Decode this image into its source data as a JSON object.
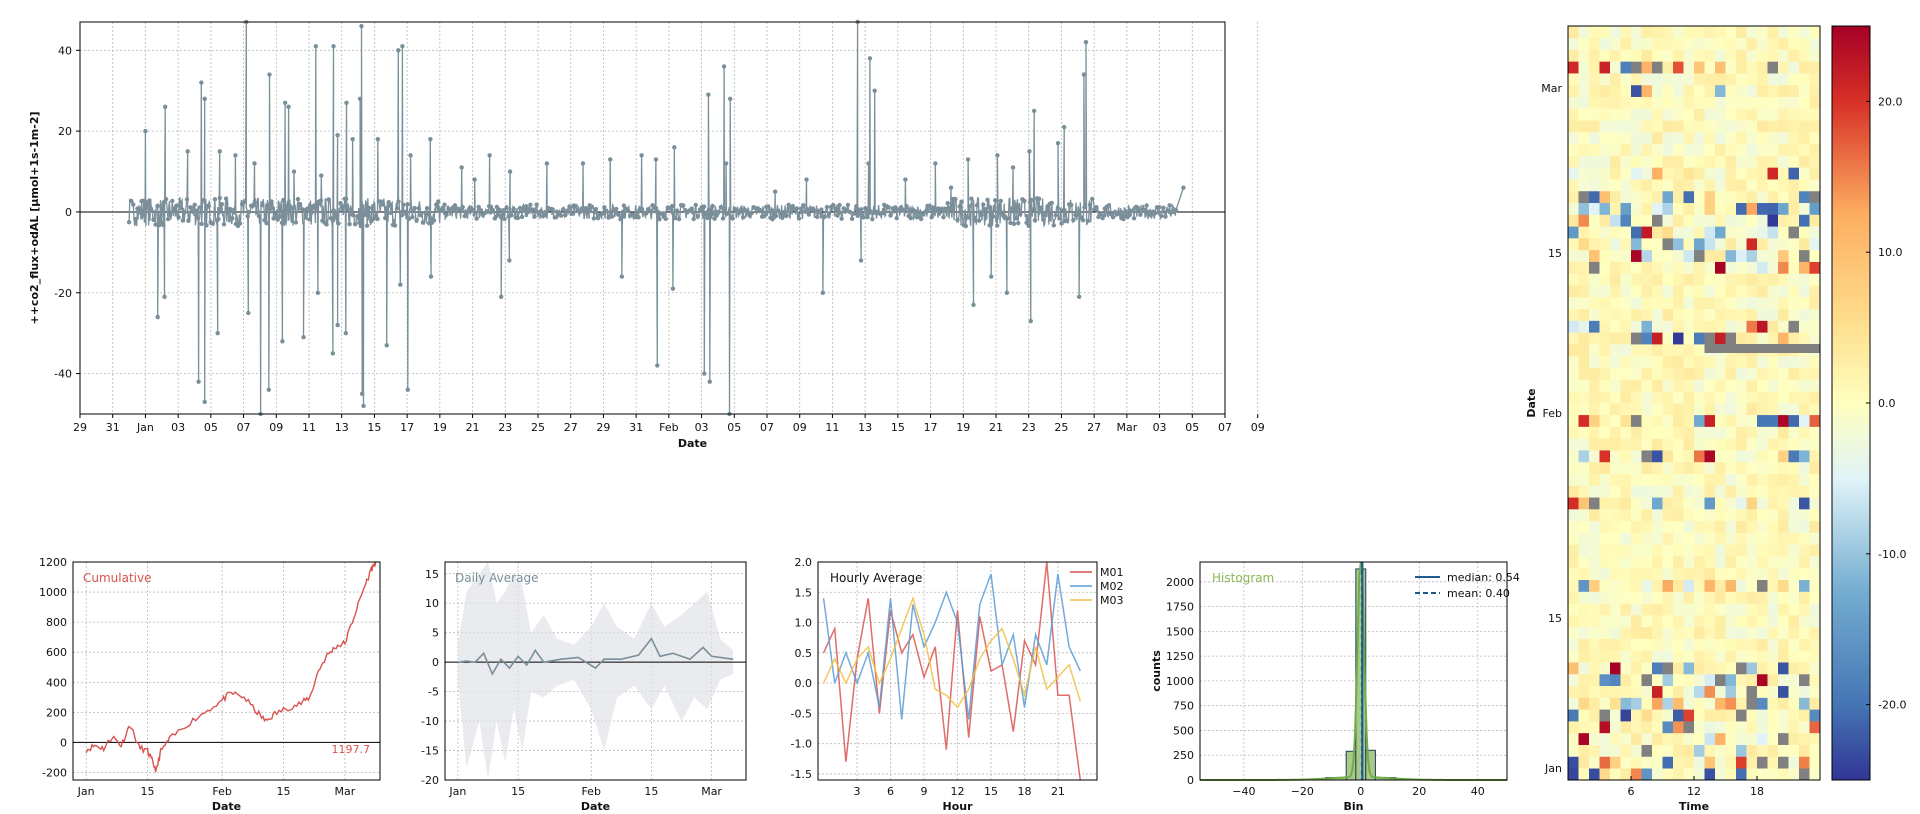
{
  "chart_data": [
    {
      "type": "line",
      "title": "",
      "xlabel": "Date",
      "ylabel": "++co2_flux+odAL [µmol+1s-1m-2]",
      "ylim": [
        -50,
        47
      ],
      "yticks": [
        -40,
        -20,
        0,
        20,
        40
      ],
      "xtick_labels": [
        "29",
        "31",
        "Jan",
        "03",
        "05",
        "07",
        "09",
        "11",
        "13",
        "15",
        "17",
        "19",
        "21",
        "23",
        "25",
        "27",
        "29",
        "31",
        "Feb",
        "03",
        "05",
        "07",
        "09",
        "11",
        "13",
        "15",
        "17",
        "19",
        "21",
        "23",
        "25",
        "27",
        "Mar",
        "03",
        "05",
        "07",
        "09"
      ],
      "x_range": [
        "2018-12-29",
        "2019-03-09"
      ],
      "data_range": [
        "2019-01-01",
        "2019-03-06"
      ],
      "series": [
        {
          "color": "#7a8f9a",
          "spikes": [
            [
              "2019-01-02",
              20
            ],
            [
              "2019-01-02",
              -26
            ],
            [
              "2019-01-03",
              26
            ],
            [
              "2019-01-03",
              -21
            ],
            [
              "2019-01-04",
              15
            ],
            [
              "2019-01-05",
              32
            ],
            [
              "2019-01-05",
              -42
            ],
            [
              "2019-01-05",
              28
            ],
            [
              "2019-01-05",
              -47
            ],
            [
              "2019-01-06",
              -30
            ],
            [
              "2019-01-06",
              15
            ],
            [
              "2019-01-07",
              14
            ],
            [
              "2019-01-08",
              12
            ],
            [
              "2019-01-08",
              47
            ],
            [
              "2019-01-08",
              -25
            ],
            [
              "2019-01-09",
              34
            ],
            [
              "2019-01-09",
              -44
            ],
            [
              "2019-01-09",
              -50
            ],
            [
              "2019-01-10",
              27
            ],
            [
              "2019-01-10",
              -32
            ],
            [
              "2019-01-10",
              26
            ],
            [
              "2019-01-11",
              -31
            ],
            [
              "2019-01-11",
              10
            ],
            [
              "2019-01-12",
              41
            ],
            [
              "2019-01-12",
              9
            ],
            [
              "2019-01-12",
              -20
            ],
            [
              "2019-01-13",
              41
            ],
            [
              "2019-01-13",
              -35
            ],
            [
              "2019-01-13",
              19
            ],
            [
              "2019-01-13",
              -28
            ],
            [
              "2019-01-14",
              27
            ],
            [
              "2019-01-14",
              -30
            ],
            [
              "2019-01-14",
              18
            ],
            [
              "2019-01-15",
              -45
            ],
            [
              "2019-01-15",
              28
            ],
            [
              "2019-01-15",
              46
            ],
            [
              "2019-01-15",
              -48
            ],
            [
              "2019-01-16",
              18
            ],
            [
              "2019-01-16",
              -33
            ],
            [
              "2019-01-17",
              40
            ],
            [
              "2019-01-17",
              -18
            ],
            [
              "2019-01-17",
              41
            ],
            [
              "2019-01-18",
              -44
            ],
            [
              "2019-01-18",
              14
            ],
            [
              "2019-01-19",
              -16
            ],
            [
              "2019-01-19",
              18
            ],
            [
              "2019-01-21",
              11
            ],
            [
              "2019-01-22",
              8
            ],
            [
              "2019-01-23",
              -21
            ],
            [
              "2019-01-23",
              14
            ],
            [
              "2019-01-24",
              10
            ],
            [
              "2019-01-24",
              -12
            ],
            [
              "2019-01-26",
              12
            ],
            [
              "2019-01-28",
              12
            ],
            [
              "2019-01-30",
              13
            ],
            [
              "2019-01-31",
              -16
            ],
            [
              "2019-02-01",
              14
            ],
            [
              "2019-02-02",
              13
            ],
            [
              "2019-02-02",
              -38
            ],
            [
              "2019-02-03",
              16
            ],
            [
              "2019-02-03",
              -19
            ],
            [
              "2019-02-05",
              29
            ],
            [
              "2019-02-05",
              -42
            ],
            [
              "2019-02-05",
              -40
            ],
            [
              "2019-02-06",
              28
            ],
            [
              "2019-02-06",
              36
            ],
            [
              "2019-02-06",
              -50
            ],
            [
              "2019-02-06",
              12
            ],
            [
              "2019-02-09",
              5
            ],
            [
              "2019-02-11",
              8
            ],
            [
              "2019-02-12",
              -20
            ],
            [
              "2019-02-14",
              47
            ],
            [
              "2019-02-14",
              -12
            ],
            [
              "2019-02-15",
              38
            ],
            [
              "2019-02-15",
              30
            ],
            [
              "2019-02-15",
              12
            ],
            [
              "2019-02-17",
              8
            ],
            [
              "2019-02-19",
              12
            ],
            [
              "2019-02-20",
              6
            ],
            [
              "2019-02-21",
              13
            ],
            [
              "2019-02-21",
              -23
            ],
            [
              "2019-02-22",
              -16
            ],
            [
              "2019-02-23",
              14
            ],
            [
              "2019-02-23",
              -20
            ],
            [
              "2019-02-24",
              11
            ],
            [
              "2019-02-25",
              25
            ],
            [
              "2019-02-25",
              -27
            ],
            [
              "2019-02-25",
              15
            ],
            [
              "2019-02-26",
              17
            ],
            [
              "2019-02-27",
              21
            ],
            [
              "2019-02-28",
              42
            ],
            [
              "2019-02-28",
              -21
            ],
            [
              "2019-02-28",
              34
            ],
            [
              "2019-03-06",
              6
            ]
          ]
        }
      ]
    },
    {
      "type": "line",
      "title": "Cumulative",
      "xlabel": "Date",
      "ylabel": "",
      "ylim": [
        -250,
        1200
      ],
      "yticks": [
        -200,
        0,
        200,
        400,
        600,
        800,
        1000,
        1200
      ],
      "xtick_labels": [
        "Jan",
        "15",
        "Feb",
        "15",
        "Mar"
      ],
      "x_range": [
        "2018-12-29",
        "2019-03-09"
      ],
      "final_label": "1197.7",
      "series": [
        {
          "color": "#d9534f",
          "points": [
            [
              "2019-01-01",
              -50
            ],
            [
              "2019-01-03",
              -20
            ],
            [
              "2019-01-05",
              -40
            ],
            [
              "2019-01-07",
              40
            ],
            [
              "2019-01-09",
              -20
            ],
            [
              "2019-01-11",
              120
            ],
            [
              "2019-01-13",
              -30
            ],
            [
              "2019-01-15",
              -60
            ],
            [
              "2019-01-16",
              -120
            ],
            [
              "2019-01-17",
              -190
            ],
            [
              "2019-01-18",
              -60
            ],
            [
              "2019-01-20",
              20
            ],
            [
              "2019-01-24",
              120
            ],
            [
              "2019-01-28",
              200
            ],
            [
              "2019-02-01",
              280
            ],
            [
              "2019-02-03",
              330
            ],
            [
              "2019-02-06",
              300
            ],
            [
              "2019-02-09",
              200
            ],
            [
              "2019-02-11",
              140
            ],
            [
              "2019-02-13",
              190
            ],
            [
              "2019-02-16",
              230
            ],
            [
              "2019-02-19",
              260
            ],
            [
              "2019-02-21",
              300
            ],
            [
              "2019-02-23",
              480
            ],
            [
              "2019-02-25",
              580
            ],
            [
              "2019-02-27",
              640
            ],
            [
              "2019-03-01",
              660
            ],
            [
              "2019-03-03",
              830
            ],
            [
              "2019-03-05",
              1000
            ],
            [
              "2019-03-07",
              1150
            ],
            [
              "2019-03-08",
              1197.7
            ]
          ]
        }
      ]
    },
    {
      "type": "line",
      "title": "Daily Average",
      "xlabel": "Date",
      "ylabel": "",
      "ylim": [
        -20,
        17
      ],
      "yticks": [
        -20,
        -15,
        -10,
        -5,
        0,
        5,
        10,
        15
      ],
      "xtick_labels": [
        "Jan",
        "15",
        "Feb",
        "15",
        "Mar"
      ],
      "x_range": [
        "2018-12-29",
        "2019-03-09"
      ],
      "series": [
        {
          "color": "#7a8f9a",
          "mean": [
            [
              "2019-01-01",
              0
            ],
            [
              "2019-01-03",
              0.2
            ],
            [
              "2019-01-05",
              0
            ],
            [
              "2019-01-07",
              1.5
            ],
            [
              "2019-01-09",
              -2
            ],
            [
              "2019-01-11",
              0.5
            ],
            [
              "2019-01-13",
              -1
            ],
            [
              "2019-01-15",
              1
            ],
            [
              "2019-01-17",
              -0.5
            ],
            [
              "2019-01-19",
              2
            ],
            [
              "2019-01-21",
              0
            ],
            [
              "2019-01-25",
              0.5
            ],
            [
              "2019-01-29",
              0.8
            ],
            [
              "2019-02-02",
              -1
            ],
            [
              "2019-02-04",
              0.5
            ],
            [
              "2019-02-08",
              0.5
            ],
            [
              "2019-02-12",
              1.2
            ],
            [
              "2019-02-15",
              4
            ],
            [
              "2019-02-17",
              1
            ],
            [
              "2019-02-20",
              1.5
            ],
            [
              "2019-02-24",
              0.5
            ],
            [
              "2019-02-27",
              2.5
            ],
            [
              "2019-03-01",
              1
            ],
            [
              "2019-03-03",
              0.8
            ],
            [
              "2019-03-06",
              0.5
            ]
          ],
          "band": [
            [
              "2019-01-01",
              -3,
              3
            ],
            [
              "2019-01-03",
              -18,
              12
            ],
            [
              "2019-01-06",
              -10,
              15
            ],
            [
              "2019-01-08",
              -20,
              17
            ],
            [
              "2019-01-10",
              -10,
              10
            ],
            [
              "2019-01-12",
              -17,
              12
            ],
            [
              "2019-01-14",
              -8,
              15
            ],
            [
              "2019-01-16",
              -15,
              13
            ],
            [
              "2019-01-18",
              -5,
              5
            ],
            [
              "2019-01-21",
              -6,
              8
            ],
            [
              "2019-01-24",
              -4,
              4
            ],
            [
              "2019-01-28",
              -3,
              3
            ],
            [
              "2019-02-01",
              -8,
              6
            ],
            [
              "2019-02-04",
              -15,
              10
            ],
            [
              "2019-02-07",
              -6,
              6
            ],
            [
              "2019-02-11",
              -4,
              4
            ],
            [
              "2019-02-15",
              -8,
              10
            ],
            [
              "2019-02-18",
              -4,
              6
            ],
            [
              "2019-02-22",
              -10,
              8
            ],
            [
              "2019-02-25",
              -6,
              10
            ],
            [
              "2019-02-28",
              -8,
              12
            ],
            [
              "2019-03-03",
              -3,
              4
            ],
            [
              "2019-03-06",
              -2,
              2
            ]
          ]
        }
      ]
    },
    {
      "type": "line",
      "title": "Hourly Average",
      "xlabel": "Hour",
      "ylabel": "",
      "ylim": [
        -1.6,
        2.0
      ],
      "yticks": [
        -1.5,
        -1.0,
        -0.5,
        0.0,
        0.5,
        1.0,
        1.5,
        2.0
      ],
      "xlim": [
        -0.5,
        24.5
      ],
      "xticks": [
        3,
        6,
        9,
        12,
        15,
        18,
        21
      ],
      "series": [
        {
          "name": "M01",
          "color": "#d9534f",
          "values": [
            0.5,
            0.9,
            -1.3,
            0.4,
            1.4,
            -0.5,
            1.2,
            0.5,
            0.8,
            0.1,
            0.6,
            -1.1,
            1.2,
            -0.9,
            1.1,
            0.2,
            0.3,
            -0.8,
            0.7,
            0.3,
            2.0,
            -0.2,
            -0.2,
            -1.6
          ]
        },
        {
          "name": "M02",
          "color": "#5b9bd5",
          "values": [
            1.4,
            0.0,
            0.5,
            0.0,
            0.5,
            -0.4,
            1.4,
            -0.6,
            1.3,
            0.6,
            1.0,
            1.5,
            1.0,
            -0.6,
            1.3,
            1.8,
            0.3,
            0.8,
            -0.4,
            0.8,
            0.3,
            1.8,
            0.6,
            0.2
          ]
        },
        {
          "name": "M03",
          "color": "#f0c040",
          "values": [
            0.0,
            0.4,
            0.0,
            0.4,
            0.6,
            0.0,
            0.4,
            0.9,
            1.4,
            0.8,
            -0.1,
            -0.2,
            -0.4,
            -0.1,
            0.4,
            0.7,
            0.9,
            0.4,
            -0.2,
            0.6,
            -0.1,
            0.1,
            0.3,
            -0.3
          ]
        }
      ]
    },
    {
      "type": "bar",
      "title": "Histogram",
      "xlabel": "Bin",
      "ylabel": "counts",
      "ylim": [
        0,
        2200
      ],
      "yticks": [
        0,
        250,
        500,
        750,
        1000,
        1250,
        1500,
        1750,
        2000
      ],
      "xlim": [
        -55,
        50
      ],
      "xticks": [
        -40,
        -20,
        0,
        20,
        40
      ],
      "bins": [
        [
          -5,
          -1.7,
          290
        ],
        [
          -1.7,
          1.7,
          2130
        ],
        [
          1.7,
          5,
          300
        ],
        [
          -12,
          -5,
          25
        ],
        [
          5,
          12,
          25
        ]
      ],
      "median_label": "median: 0.54",
      "mean_label": "mean: 0.40",
      "median": 0.54,
      "mean": 0.4
    },
    {
      "type": "heatmap",
      "title": "",
      "xlabel": "Time",
      "ylabel": "Date",
      "xticks": [
        6,
        12,
        18
      ],
      "xlim": [
        0,
        24
      ],
      "ytick_labels": [
        "Jan",
        "15",
        "Feb",
        "15",
        "Mar"
      ],
      "y_range": [
        "2019-01-01",
        "2019-03-06"
      ],
      "colorbar_ticks": [
        "20.0",
        "10.0",
        "0.0",
        "-10.0",
        "-20.0"
      ],
      "colorbar_range": [
        -25,
        25
      ],
      "colormap": "RdYlBu_r",
      "missing_color": "#808080"
    }
  ]
}
